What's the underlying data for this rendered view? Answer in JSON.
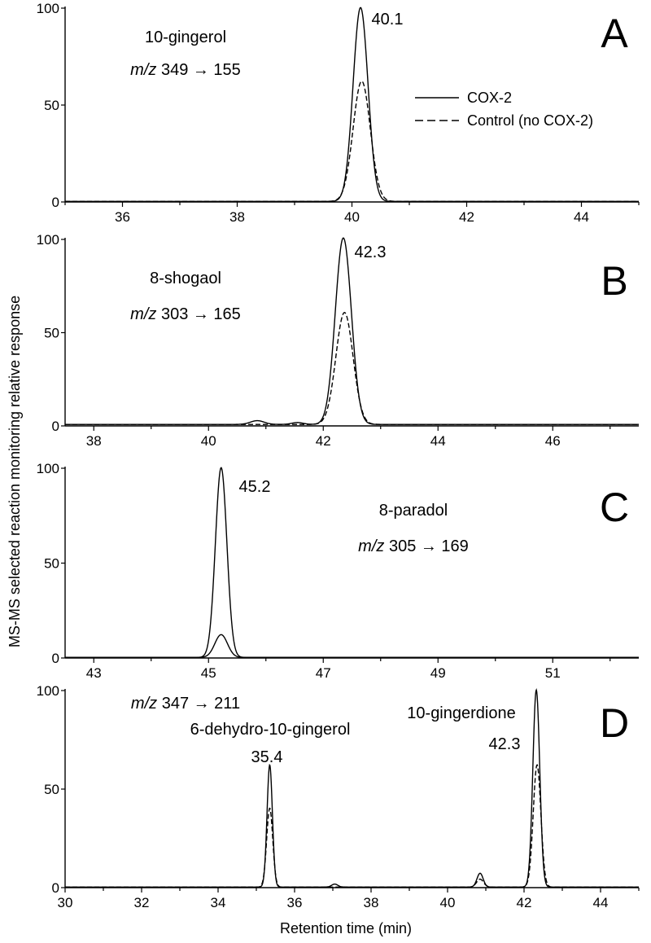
{
  "chart_data": [
    {
      "type": "line",
      "panel": "A",
      "xlim": [
        35,
        45
      ],
      "ylim": [
        0,
        100
      ],
      "x_ticks": [
        "36",
        "38",
        "40",
        "42",
        "44"
      ],
      "y_ticks": [
        "0",
        "50",
        "100"
      ],
      "annotation": {
        "compound": "10-gingerol",
        "mz_prefix": "m/z",
        "mz": "349 → 155"
      },
      "legend": {
        "position": "right",
        "entries": [
          "COX-2",
          "Control (no COX-2)"
        ]
      },
      "peak_labels": [
        {
          "x": 40.1,
          "text": "40.1"
        }
      ],
      "series": [
        {
          "name": "COX-2",
          "style": "solid",
          "baseline": 0.3,
          "peaks": [
            {
              "x": 40.15,
              "height": 100,
              "width": 0.13
            }
          ]
        },
        {
          "name": "Control (no COX-2)",
          "style": "dashed",
          "baseline": 0.3,
          "peaks": [
            {
              "x": 40.17,
              "height": 62,
              "width": 0.15
            }
          ]
        }
      ]
    },
    {
      "type": "line",
      "panel": "B",
      "xlim": [
        37.5,
        47.5
      ],
      "ylim": [
        0,
        100
      ],
      "x_ticks": [
        "38",
        "40",
        "42",
        "44",
        "46"
      ],
      "y_ticks": [
        "0",
        "50",
        "100"
      ],
      "annotation": {
        "compound": "8-shogaol",
        "mz_prefix": "m/z",
        "mz": "303 → 165"
      },
      "peak_labels": [
        {
          "x": 42.3,
          "text": "42.3"
        }
      ],
      "series": [
        {
          "name": "COX-2",
          "style": "solid",
          "baseline": 0.8,
          "peaks": [
            {
              "x": 42.35,
              "height": 100,
              "width": 0.14
            },
            {
              "x": 40.85,
              "height": 2,
              "width": 0.12
            },
            {
              "x": 41.55,
              "height": 1,
              "width": 0.1
            }
          ]
        },
        {
          "name": "Control (no COX-2)",
          "style": "dashed",
          "baseline": 0.8,
          "peaks": [
            {
              "x": 42.37,
              "height": 60,
              "width": 0.15
            }
          ]
        }
      ]
    },
    {
      "type": "line",
      "panel": "C",
      "xlim": [
        42.5,
        52.5
      ],
      "ylim": [
        0,
        100
      ],
      "x_ticks": [
        "43",
        "45",
        "47",
        "49",
        "51"
      ],
      "y_ticks": [
        "0",
        "50",
        "100"
      ],
      "annotation": {
        "compound": "8-paradol",
        "mz_prefix": "m/z",
        "mz": "305 → 169"
      },
      "peak_labels": [
        {
          "x": 45.2,
          "text": "45.2"
        }
      ],
      "series": [
        {
          "name": "COX-2",
          "style": "solid",
          "baseline": 0.3,
          "peaks": [
            {
              "x": 45.22,
              "height": 100,
              "width": 0.1
            }
          ]
        },
        {
          "name": "Control (no COX-2)",
          "style": "solid",
          "baseline": 0.3,
          "peaks": [
            {
              "x": 45.22,
              "height": 12,
              "width": 0.11
            }
          ]
        }
      ]
    },
    {
      "type": "line",
      "panel": "D",
      "xlim": [
        30,
        45
      ],
      "ylim": [
        0,
        100
      ],
      "x_ticks": [
        "30",
        "32",
        "34",
        "36",
        "38",
        "40",
        "42",
        "44"
      ],
      "y_ticks": [
        "0",
        "50",
        "100"
      ],
      "annotation": {
        "mz_prefix": "m/z",
        "mz": "347 → 211"
      },
      "peak_labels": [
        {
          "x": 35.4,
          "text": "6-dehydro-10-gingerol",
          "line": 1
        },
        {
          "x": 35.4,
          "text": "35.4",
          "line": 2
        },
        {
          "x": 42.3,
          "text": "10-gingerdione",
          "line": 1
        },
        {
          "x": 42.3,
          "text": "42.3",
          "line": 2
        }
      ],
      "series": [
        {
          "name": "COX-2",
          "style": "solid",
          "baseline": 0.3,
          "peaks": [
            {
              "x": 35.35,
              "height": 62,
              "width": 0.07
            },
            {
              "x": 42.32,
              "height": 100,
              "width": 0.09
            },
            {
              "x": 40.85,
              "height": 7,
              "width": 0.08
            },
            {
              "x": 37.05,
              "height": 1.5,
              "width": 0.08
            }
          ]
        },
        {
          "name": "Control (no COX-2)",
          "style": "dashed",
          "baseline": 0.3,
          "peaks": [
            {
              "x": 35.35,
              "height": 40,
              "width": 0.08
            },
            {
              "x": 42.34,
              "height": 62,
              "width": 0.1
            },
            {
              "x": 40.85,
              "height": 4,
              "width": 0.09
            }
          ]
        }
      ]
    }
  ],
  "y_axis_label": "MS-MS selected reaction monitoring relative response",
  "x_axis_label": "Retention time (min)"
}
